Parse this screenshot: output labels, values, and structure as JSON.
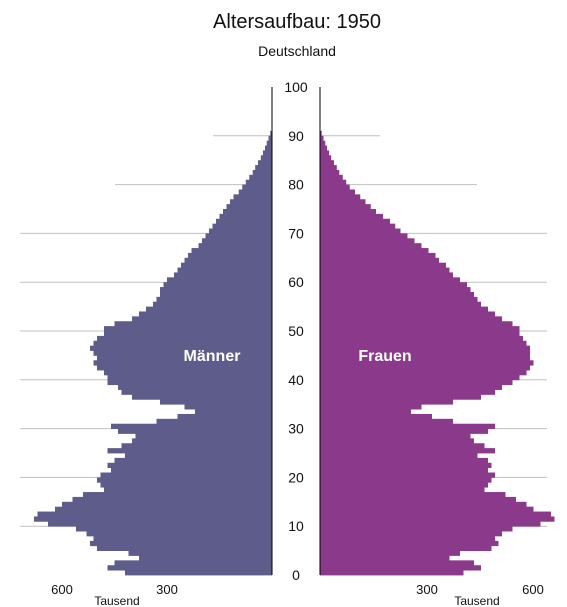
{
  "chart_data": {
    "type": "bar",
    "orientation": "population-pyramid",
    "title": "Altersaufbau: 1950",
    "subtitle": "Deutschland",
    "age_ticks": [
      "0",
      "10",
      "20",
      "30",
      "40",
      "50",
      "60",
      "70",
      "80",
      "90",
      "100"
    ],
    "age_range": [
      0,
      100
    ],
    "x_ticks_left": [
      "600",
      "300"
    ],
    "x_ticks_right": [
      "300",
      "600"
    ],
    "x_unit_left": "Tausend",
    "x_unit_right": "Tausend",
    "xlim": [
      0,
      700
    ],
    "grid": true,
    "colors": {
      "men": "#5e5c8a",
      "women": "#8b3a8b",
      "grid": "#c0c0c0",
      "axis": "#000000"
    },
    "ages": [
      0,
      1,
      2,
      3,
      4,
      5,
      6,
      7,
      8,
      9,
      10,
      11,
      12,
      13,
      14,
      15,
      16,
      17,
      18,
      19,
      20,
      21,
      22,
      23,
      24,
      25,
      26,
      27,
      28,
      29,
      30,
      31,
      32,
      33,
      34,
      35,
      36,
      37,
      38,
      39,
      40,
      41,
      42,
      43,
      44,
      45,
      46,
      47,
      48,
      49,
      50,
      51,
      52,
      53,
      54,
      55,
      56,
      57,
      58,
      59,
      60,
      61,
      62,
      63,
      64,
      65,
      66,
      67,
      68,
      69,
      70,
      71,
      72,
      73,
      74,
      75,
      76,
      77,
      78,
      79,
      80,
      81,
      82,
      83,
      84,
      85,
      86,
      87,
      88,
      89,
      90
    ],
    "series": [
      {
        "name": "Männer",
        "values": [
          420,
          470,
          450,
          380,
          410,
          500,
          520,
          510,
          530,
          560,
          640,
          680,
          670,
          620,
          600,
          570,
          540,
          480,
          490,
          500,
          490,
          460,
          470,
          450,
          420,
          470,
          430,
          400,
          390,
          440,
          460,
          330,
          270,
          220,
          250,
          320,
          400,
          430,
          440,
          470,
          470,
          480,
          500,
          510,
          500,
          510,
          520,
          510,
          500,
          480,
          480,
          450,
          400,
          380,
          360,
          340,
          330,
          320,
          320,
          310,
          300,
          280,
          270,
          260,
          250,
          240,
          230,
          210,
          200,
          190,
          180,
          170,
          160,
          150,
          140,
          130,
          120,
          110,
          95,
          85,
          75,
          65,
          55,
          48,
          40,
          32,
          26,
          20,
          15,
          10,
          5
        ]
      },
      {
        "name": "Frauen",
        "values": [
          410,
          460,
          440,
          370,
          400,
          490,
          510,
          500,
          520,
          550,
          630,
          670,
          660,
          610,
          590,
          560,
          530,
          470,
          480,
          490,
          500,
          480,
          490,
          480,
          450,
          500,
          470,
          440,
          430,
          480,
          500,
          380,
          320,
          260,
          290,
          380,
          460,
          500,
          520,
          550,
          570,
          590,
          600,
          610,
          600,
          600,
          600,
          590,
          580,
          570,
          570,
          550,
          520,
          500,
          480,
          460,
          450,
          440,
          430,
          420,
          400,
          380,
          370,
          360,
          340,
          330,
          310,
          290,
          270,
          250,
          230,
          215,
          200,
          180,
          160,
          145,
          130,
          115,
          100,
          85,
          75,
          65,
          55,
          48,
          40,
          32,
          26,
          20,
          15,
          10,
          5
        ]
      }
    ]
  }
}
